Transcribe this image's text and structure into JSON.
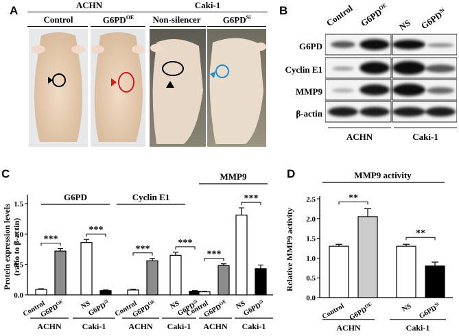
{
  "panelA": {
    "label": "A",
    "groups": [
      {
        "name": "ACHN",
        "conditions": [
          "Control",
          "G6PD<sup>OE</sup>"
        ]
      },
      {
        "name": "Caki-1",
        "conditions": [
          "Non-silencer",
          "G6PD<sup>Si</sup>"
        ]
      }
    ]
  },
  "panelB": {
    "label": "B",
    "lanes": [
      "Control",
      "G6PD",
      "NS",
      "G6PD"
    ],
    "lane_sups": [
      "",
      "OE",
      "",
      "Si"
    ],
    "proteins": [
      "G6PD",
      "Cyclin E1",
      "MMP9",
      "β-actin"
    ],
    "groups": [
      "ACHN",
      "Caki-1"
    ]
  },
  "panelC": {
    "label": "C",
    "ylabel_line1": "Protein expression levels",
    "ylabel_line2": "(ratio to β-actin)",
    "group_titles": [
      "G6PD",
      "Cyclin E1",
      "MMP9"
    ],
    "sig": "***",
    "xtick_sub_OE": "OE",
    "xtick_sub_Si": "Si",
    "cell_lines": [
      "ACHN",
      "Caki-1",
      "ACHN",
      "Caki-1",
      "ACHN",
      "Caki-1"
    ]
  },
  "panelD": {
    "label": "D",
    "title": "MMP9 activity",
    "ylabel": "Relative MMP9 activity",
    "sig": "**",
    "cell_lines": [
      "ACHN",
      "Caki-1"
    ]
  },
  "chart_data": [
    {
      "type": "bar",
      "panel": "C",
      "ylabel": "Protein expression levels (ratio to β-actin)",
      "ylim": [
        0,
        1.6
      ],
      "yticks": [
        0.0,
        0.5,
        1.0,
        1.5
      ],
      "groups": [
        {
          "protein": "G6PD",
          "cell_line": "ACHN",
          "categories": [
            "Control",
            "G6PDOE"
          ],
          "values": [
            0.09,
            0.72
          ],
          "errors": [
            0.01,
            0.04
          ],
          "colors": [
            "#ffffff",
            "#8c8c8c"
          ]
        },
        {
          "protein": "G6PD",
          "cell_line": "Caki-1",
          "categories": [
            "NS",
            "G6PDSi"
          ],
          "values": [
            0.86,
            0.07
          ],
          "errors": [
            0.05,
            0.01
          ],
          "colors": [
            "#ffffff",
            "#000000"
          ]
        },
        {
          "protein": "Cyclin E1",
          "cell_line": "ACHN",
          "categories": [
            "Control",
            "G6PDOE"
          ],
          "values": [
            0.08,
            0.56
          ],
          "errors": [
            0.01,
            0.04
          ],
          "colors": [
            "#ffffff",
            "#8c8c8c"
          ]
        },
        {
          "protein": "Cyclin E1",
          "cell_line": "Caki-1",
          "categories": [
            "NS",
            "G6PDSi"
          ],
          "values": [
            0.65,
            0.06
          ],
          "errors": [
            0.05,
            0.01
          ],
          "colors": [
            "#ffffff",
            "#000000"
          ]
        },
        {
          "protein": "MMP9",
          "cell_line": "ACHN",
          "categories": [
            "Control",
            "G6PDOE"
          ],
          "values": [
            0.05,
            0.48
          ],
          "errors": [
            0.01,
            0.03
          ],
          "colors": [
            "#ffffff",
            "#8c8c8c"
          ]
        },
        {
          "protein": "MMP9",
          "cell_line": "Caki-1",
          "categories": [
            "NS",
            "G6PDSi"
          ],
          "values": [
            1.31,
            0.43
          ],
          "errors": [
            0.12,
            0.06
          ],
          "colors": [
            "#ffffff",
            "#000000"
          ]
        }
      ]
    },
    {
      "type": "bar",
      "panel": "D",
      "title": "MMP9 activity",
      "ylabel": "Relative MMP9 activity",
      "ylim": [
        0,
        2.5
      ],
      "yticks": [
        0.0,
        0.5,
        1.0,
        1.5,
        2.0,
        2.5
      ],
      "groups": [
        {
          "cell_line": "ACHN",
          "categories": [
            "Control",
            "G6PDOE"
          ],
          "values": [
            1.3,
            2.05
          ],
          "errors": [
            0.05,
            0.2
          ],
          "colors": [
            "#ffffff",
            "#cccccc"
          ]
        },
        {
          "cell_line": "Caki-1",
          "categories": [
            "NS",
            "G6PDSi"
          ],
          "values": [
            1.3,
            0.8
          ],
          "errors": [
            0.05,
            0.1
          ],
          "colors": [
            "#ffffff",
            "#000000"
          ]
        }
      ]
    }
  ]
}
